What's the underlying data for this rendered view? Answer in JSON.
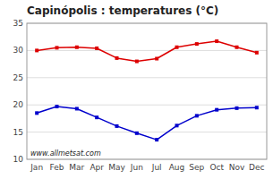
{
  "chart_data": {
    "type": "line",
    "title": "Capinópolis : temperatures (°C)",
    "categories": [
      "Jan",
      "Feb",
      "Mar",
      "Apr",
      "May",
      "Jun",
      "Jul",
      "Aug",
      "Sep",
      "Oct",
      "Nov",
      "Dec"
    ],
    "series": [
      {
        "color": "#dd0000",
        "marker": "square",
        "values": [
          30.0,
          30.5,
          30.6,
          30.4,
          28.6,
          28.0,
          28.5,
          30.6,
          31.2,
          31.7,
          30.6,
          29.6
        ]
      },
      {
        "color": "#0000cc",
        "marker": "square",
        "values": [
          18.5,
          19.7,
          19.3,
          17.7,
          16.1,
          14.8,
          13.6,
          16.2,
          18.0,
          19.1,
          19.4,
          19.5
        ]
      }
    ],
    "ylim": [
      10,
      35
    ],
    "yticks": [
      10,
      15,
      20,
      25,
      30,
      35
    ],
    "grid": "y",
    "annotations": [
      "www.allmetsat.com"
    ]
  }
}
